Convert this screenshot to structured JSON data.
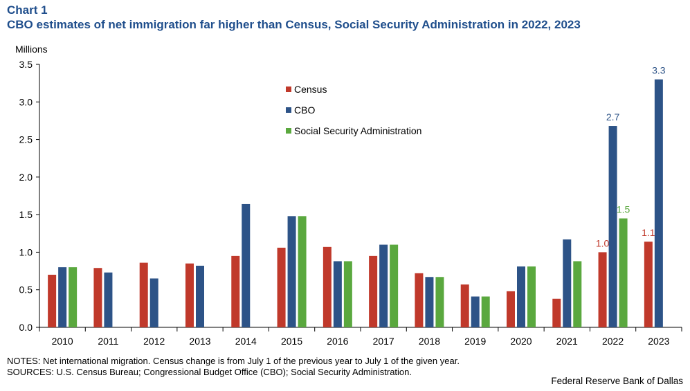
{
  "header": {
    "chart_label": "Chart 1",
    "title": "CBO estimates of net immigration far higher than Census, Social Security Administration in 2022, 2023",
    "unit": "Millions"
  },
  "footer": {
    "notes": "NOTES: Net international migration. Census change is from July 1 of the previous year to July 1 of the given year.",
    "sources": "SOURCES: U.S. Census Bureau; Congressional Budget Office (CBO); Social Security Administration.",
    "credit": "Federal Reserve Bank of Dallas"
  },
  "chart_data": {
    "type": "bar",
    "title": "CBO estimates of net immigration far higher than Census, Social Security Administration in 2022, 2023",
    "ylabel": "Millions",
    "ylim": [
      0,
      3.5
    ],
    "yticks": [
      "0.0",
      "0.5",
      "1.0",
      "1.5",
      "2.0",
      "2.5",
      "3.0",
      "3.5"
    ],
    "grid": false,
    "legend_position": "top-center",
    "categories": [
      "2010",
      "2011",
      "2012",
      "2013",
      "2014",
      "2015",
      "2016",
      "2017",
      "2018",
      "2019",
      "2020",
      "2021",
      "2022",
      "2023"
    ],
    "series": [
      {
        "name": "Census",
        "color": "#c0392b",
        "values": [
          0.7,
          0.79,
          0.86,
          0.85,
          0.95,
          1.06,
          1.07,
          0.95,
          0.72,
          0.57,
          0.48,
          0.38,
          1.0,
          1.14
        ],
        "labels": {
          "12": "1.0",
          "13": "1.1"
        }
      },
      {
        "name": "CBO",
        "color": "#2d5387",
        "values": [
          0.8,
          0.73,
          0.65,
          0.82,
          1.64,
          1.48,
          0.88,
          1.1,
          0.67,
          0.41,
          0.81,
          1.17,
          2.68,
          3.3
        ],
        "labels": {
          "12": "2.7",
          "13": "3.3"
        }
      },
      {
        "name": "Social Security Administration",
        "color": "#5aa83e",
        "values": [
          0.8,
          null,
          null,
          null,
          null,
          1.48,
          0.88,
          1.1,
          0.67,
          0.41,
          0.81,
          0.88,
          1.45,
          null
        ],
        "labels": {
          "12": "1.5"
        }
      }
    ]
  }
}
